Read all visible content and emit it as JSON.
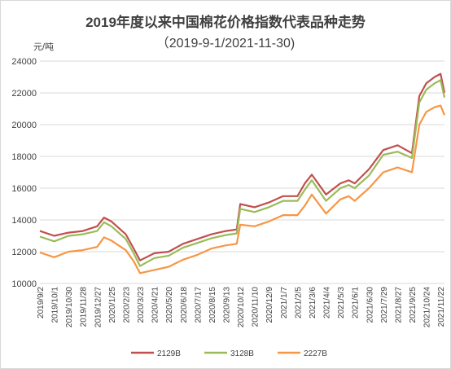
{
  "chart_data": {
    "type": "line",
    "title": "2019年度以来中国棉花价格指数代表品种走势",
    "subtitle": "（2019-9-1/2021-11-30)",
    "ylabel": "元/吨",
    "ylim": [
      10000,
      24000
    ],
    "yticks": [
      "10000",
      "12000",
      "14000",
      "16000",
      "18000",
      "20000",
      "22000",
      "24000"
    ],
    "xlabel_ticks": [
      "2019/9/2",
      "2019/10/1",
      "2019/10/30",
      "2019/11/28",
      "2019/12/27",
      "2020/1/25",
      "2020/2/23",
      "2020/3/23",
      "2020/4/21",
      "2020/5/20",
      "2020/6/18",
      "2020/7/17",
      "2020/8/15",
      "2020/9/13",
      "2020/10/12",
      "2020/11/10",
      "2020/12/9",
      "2021/1/7",
      "2021/2/5",
      "2021/3/6",
      "2021/4/4",
      "2021/5/3",
      "2021/6/1",
      "2021/6/30",
      "2021/7/29",
      "2021/8/27",
      "2021/9/25",
      "2021/10/24",
      "2021/11/22"
    ],
    "grid": "horizontal",
    "legend": "bottom",
    "x": [
      "2019/9/2",
      "2019/10/1",
      "2019/10/30",
      "2019/11/28",
      "2019/12/27",
      "2020/1/10",
      "2020/1/25",
      "2020/2/23",
      "2020/3/10",
      "2020/3/23",
      "2020/4/21",
      "2020/5/20",
      "2020/6/18",
      "2020/7/17",
      "2020/8/15",
      "2020/9/13",
      "2020/10/5",
      "2020/10/12",
      "2020/11/10",
      "2020/12/9",
      "2021/1/7",
      "2021/2/5",
      "2021/2/20",
      "2021/3/6",
      "2021/4/4",
      "2021/5/3",
      "2021/5/20",
      "2021/6/1",
      "2021/6/30",
      "2021/7/29",
      "2021/8/27",
      "2021/9/25",
      "2021/10/10",
      "2021/10/24",
      "2021/11/10",
      "2021/11/22",
      "2021/11/30"
    ],
    "series": [
      {
        "name": "2129B",
        "color": "#c0504d",
        "values": [
          13300,
          13000,
          13200,
          13300,
          13600,
          14150,
          13900,
          13100,
          12200,
          11450,
          11900,
          12000,
          12500,
          12800,
          13100,
          13300,
          13400,
          15000,
          14800,
          15100,
          15500,
          15500,
          16300,
          16850,
          15600,
          16300,
          16500,
          16300,
          17200,
          18400,
          18700,
          18200,
          21800,
          22600,
          23000,
          23200,
          22000
        ]
      },
      {
        "name": "3128B",
        "color": "#9bbb59",
        "values": [
          12950,
          12650,
          13000,
          13100,
          13300,
          13850,
          13600,
          12800,
          11900,
          11100,
          11600,
          11750,
          12250,
          12550,
          12850,
          13050,
          13150,
          14700,
          14500,
          14800,
          15200,
          15200,
          15900,
          16500,
          15200,
          16000,
          16200,
          16000,
          16800,
          18100,
          18300,
          17900,
          21400,
          22200,
          22600,
          22800,
          21700
        ]
      },
      {
        "name": "2227B",
        "color": "#f79646",
        "values": [
          11950,
          11650,
          12000,
          12100,
          12300,
          12900,
          12700,
          12100,
          11400,
          10650,
          10850,
          11050,
          11500,
          11800,
          12200,
          12400,
          12500,
          13700,
          13600,
          13900,
          14300,
          14300,
          14900,
          15600,
          14400,
          15300,
          15500,
          15200,
          16000,
          17000,
          17300,
          17000,
          20000,
          20800,
          21100,
          21200,
          20600
        ]
      }
    ]
  }
}
